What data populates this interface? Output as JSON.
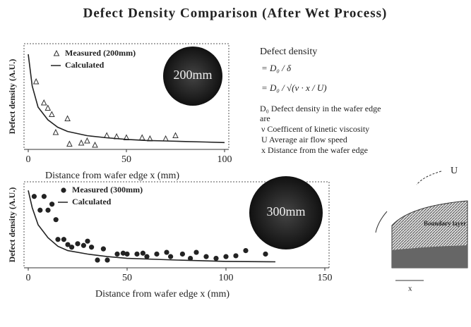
{
  "title": "Defect Density Comparison (After Wet Process)",
  "chart_data": [
    {
      "type": "scatter",
      "ylabel": "Defect density (A.U.)",
      "xlabel": "Distance from wafer edge x (mm)",
      "annotation": "200mm",
      "xlim": [
        0,
        100
      ],
      "xticks": [
        0,
        50,
        100
      ],
      "ylim": [
        0,
        10
      ],
      "series": [
        {
          "name": "Measured (200mm)",
          "marker": "triangle",
          "color": "#333333",
          "x": [
            4,
            8,
            10,
            12,
            14,
            20,
            21,
            27,
            30,
            34,
            40,
            45,
            50,
            58,
            62,
            70,
            75
          ],
          "values": [
            6.4,
            4.4,
            3.9,
            3.3,
            1.6,
            2.9,
            0.5,
            0.6,
            0.8,
            0.4,
            1.3,
            1.2,
            1.1,
            1.1,
            1.0,
            1.0,
            1.3
          ]
        },
        {
          "name": "Calculated",
          "marker": "line",
          "color": "#222222",
          "x": [
            0,
            2,
            5,
            10,
            15,
            20,
            30,
            40,
            50,
            60,
            70,
            80,
            90,
            100
          ],
          "values": [
            9,
            6,
            4,
            2.8,
            2.1,
            1.7,
            1.3,
            1.1,
            0.95,
            0.85,
            0.8,
            0.75,
            0.7,
            0.65
          ]
        }
      ]
    },
    {
      "type": "scatter",
      "ylabel": "Defect density (A.U.)",
      "xlabel": "Distance from wafer edge x (mm)",
      "annotation": "300mm",
      "xlim": [
        0,
        150
      ],
      "xticks": [
        0,
        50,
        100,
        150
      ],
      "ylim": [
        0,
        10
      ],
      "series": [
        {
          "name": "Measured (300mm)",
          "marker": "circle",
          "color": "#222222",
          "x": [
            3,
            6,
            8,
            10,
            12,
            14,
            15,
            18,
            20,
            22,
            25,
            28,
            30,
            32,
            35,
            38,
            40,
            45,
            48,
            50,
            55,
            58,
            60,
            65,
            70,
            72,
            78,
            82,
            85,
            90,
            95,
            100,
            105,
            110,
            120
          ],
          "values": [
            8.3,
            6.7,
            8.3,
            6.7,
            7.4,
            5.6,
            3.3,
            3.3,
            2.7,
            2.4,
            2.8,
            2.6,
            3.1,
            2.4,
            0.9,
            2.2,
            0.9,
            1.6,
            1.7,
            1.6,
            1.6,
            1.7,
            1.3,
            1.6,
            1.8,
            1.3,
            1.6,
            1.1,
            1.8,
            1.3,
            1.1,
            1.3,
            1.4,
            2.0,
            1.6
          ]
        },
        {
          "name": "Calculated",
          "marker": "line",
          "color": "#222222",
          "x": [
            0,
            2,
            5,
            10,
            15,
            20,
            30,
            40,
            50,
            75,
            100,
            125
          ],
          "values": [
            9,
            7,
            5,
            3.5,
            2.5,
            2,
            1.6,
            1.3,
            1.1,
            0.9,
            0.75,
            0.7
          ]
        }
      ]
    }
  ],
  "notes": [
    "Defect density",
    "= D₀ / δ",
    "= D₀ / √(ν · x / U)",
    "D₀  Defect density in the wafer edge",
    "are",
    "ν  Coefficent of kinetic viscosity",
    "U  Average air flow speed",
    "x  Distance from the wafer edge"
  ],
  "diagram": {
    "flow": "U",
    "layer": "Boundary layer",
    "axis": "x"
  }
}
